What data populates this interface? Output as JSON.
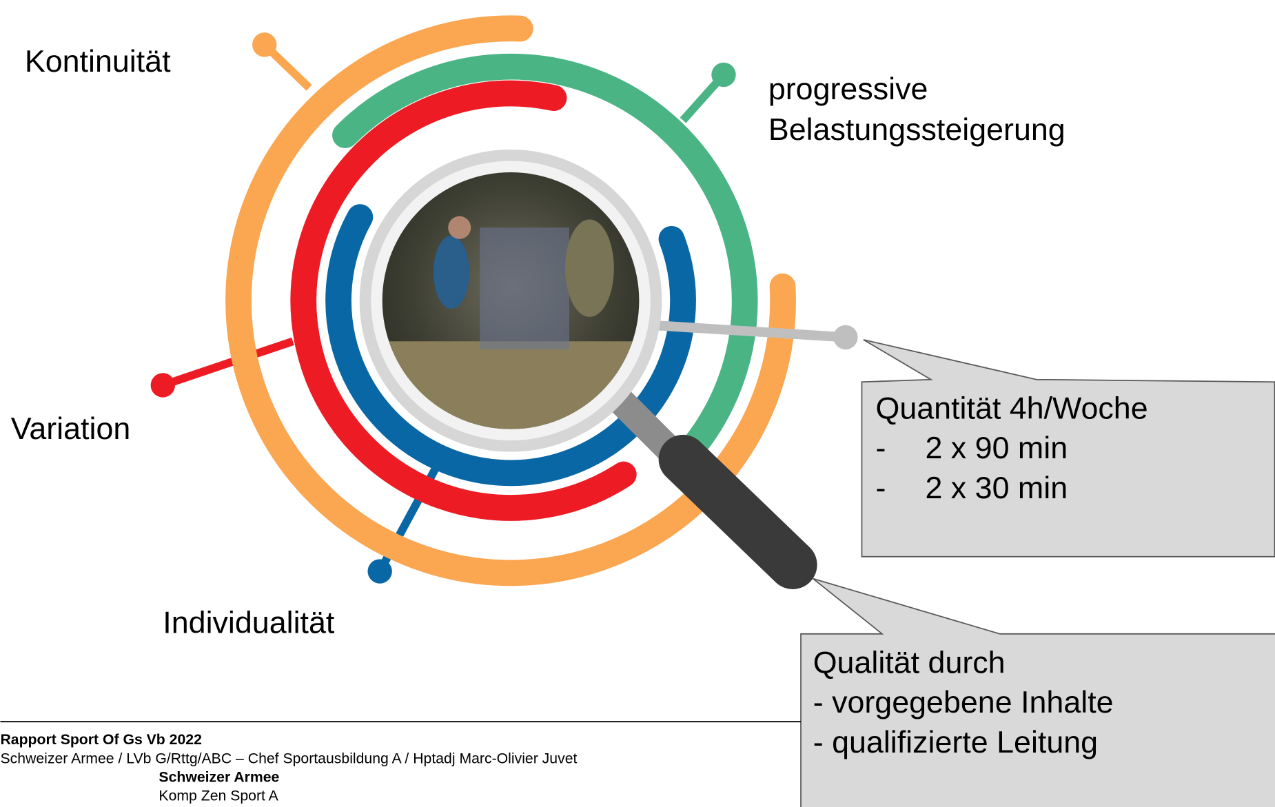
{
  "labels": {
    "top_left": "Kontinuität",
    "top_right": [
      "progressive",
      "Belastungssteigerung"
    ],
    "left": "Variation",
    "bottom": "Individualität"
  },
  "callouts": [
    {
      "title": "Quantität 4h/Woche",
      "items": [
        {
          "bullet": "-",
          "text": "2 x 90 min"
        },
        {
          "bullet": "-",
          "text": "2 x 30 min"
        }
      ]
    },
    {
      "title": "Qualität durch",
      "items": [
        "- vorgegebene Inhalte",
        "- qualifizierte Leitung"
      ]
    }
  ],
  "footer": {
    "title": "Rapport Sport Of Gs Vb 2022",
    "subtitle": "Schweizer Armee / LVb G/Rttg/ABC – Chef Sportausbildung A  / Hptadj Marc-Olivier Juvet",
    "org": "Schweizer Armee",
    "unit": "Komp Zen Sport A"
  }
}
